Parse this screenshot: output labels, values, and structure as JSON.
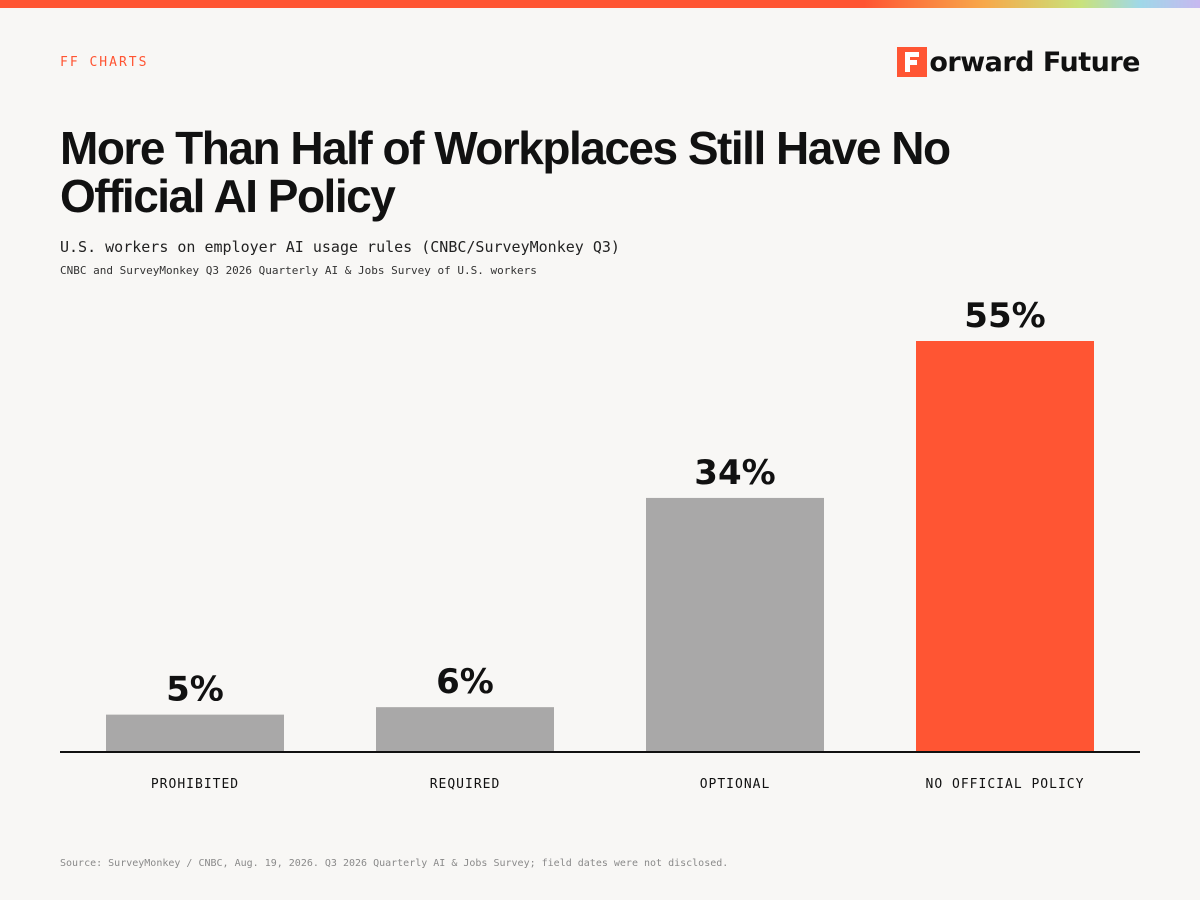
{
  "header": {
    "kicker": "FF CHARTS",
    "brand": "orward Future",
    "brand_icon": "forward-future-logo-icon",
    "brand_color": "#ff5533"
  },
  "title": "More Than Half of Workplaces Still Have No Official AI Policy",
  "subtitle": "U.S. workers on employer AI usage rules (CNBC/SurveyMonkey Q3)",
  "note": "CNBC and SurveyMonkey Q3 2026 Quarterly AI & Jobs Survey of U.S. workers",
  "source": "Source: SurveyMonkey / CNBC, Aug. 19, 2026. Q3 2026 Quarterly AI & Jobs Survey; field dates were not disclosed.",
  "colors": {
    "background": "#f8f7f5",
    "bar_default": "#a9a8a8",
    "bar_highlight": "#ff5533",
    "axis": "#111111"
  },
  "chart_data": {
    "type": "bar",
    "categories": [
      "PROHIBITED",
      "REQUIRED",
      "OPTIONAL",
      "NO OFFICIAL POLICY"
    ],
    "values": [
      5,
      6,
      34,
      55
    ],
    "value_labels": [
      "5%",
      "6%",
      "34%",
      "55%"
    ],
    "highlight": "NO OFFICIAL POLICY",
    "ylim": [
      0,
      55
    ],
    "xlabel": "",
    "ylabel": "",
    "grid": false,
    "legend": "none"
  }
}
